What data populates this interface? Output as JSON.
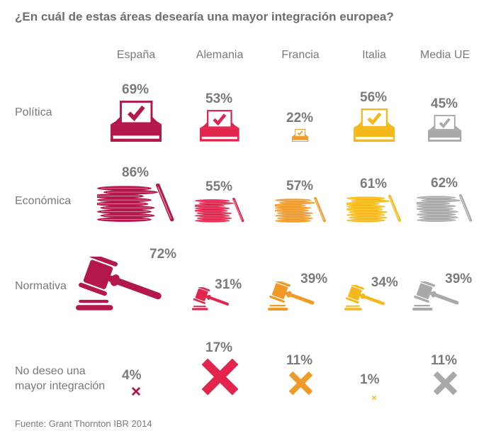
{
  "title": "¿En cuál de estas áreas desearía una mayor integración europea?",
  "source": "Fuente: Grant Thornton IBR 2014",
  "chart_data": {
    "type": "table",
    "title": "¿En cuál de estas áreas desearía una mayor integración europea?",
    "categories": [
      "España",
      "Alemania",
      "Francia",
      "Italia",
      "Media UE"
    ],
    "colors": [
      "#b3174b",
      "#e2254c",
      "#f09a2a",
      "#f5b91c",
      "#a9a9a9"
    ],
    "rows": [
      {
        "label": "Política",
        "icon": "ballot-box",
        "values": [
          69,
          53,
          22,
          56,
          45
        ],
        "labels": [
          "69%",
          "53%",
          "22%",
          "56%",
          "45%"
        ]
      },
      {
        "label": "Económica",
        "icon": "coins",
        "values": [
          86,
          55,
          57,
          61,
          62
        ],
        "labels": [
          "86%",
          "55%",
          "57%",
          "61%",
          "62%"
        ]
      },
      {
        "label": "Normativa",
        "icon": "gavel",
        "values": [
          72,
          31,
          39,
          34,
          39
        ],
        "labels": [
          "72%",
          "31%",
          "39%",
          "34%",
          "39%"
        ]
      },
      {
        "label": "No deseo una mayor integración",
        "icon": "cross",
        "values": [
          4,
          17,
          11,
          1,
          11
        ],
        "labels": [
          "4%",
          "17%",
          "11%",
          "1%",
          "11%"
        ]
      }
    ]
  }
}
